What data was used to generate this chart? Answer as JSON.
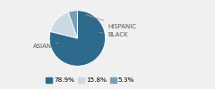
{
  "labels": [
    "ASIAN",
    "BLACK",
    "HISPANIC"
  ],
  "values": [
    78.9,
    15.8,
    5.3
  ],
  "colors": [
    "#2e6a8c",
    "#ccd9e3",
    "#7a9fb5"
  ],
  "legend_labels": [
    "78.9%",
    "15.8%",
    "5.3%"
  ],
  "startangle": 90,
  "background_color": "#f0f0f0",
  "label_fontsize": 5.0,
  "legend_fontsize": 5.2
}
